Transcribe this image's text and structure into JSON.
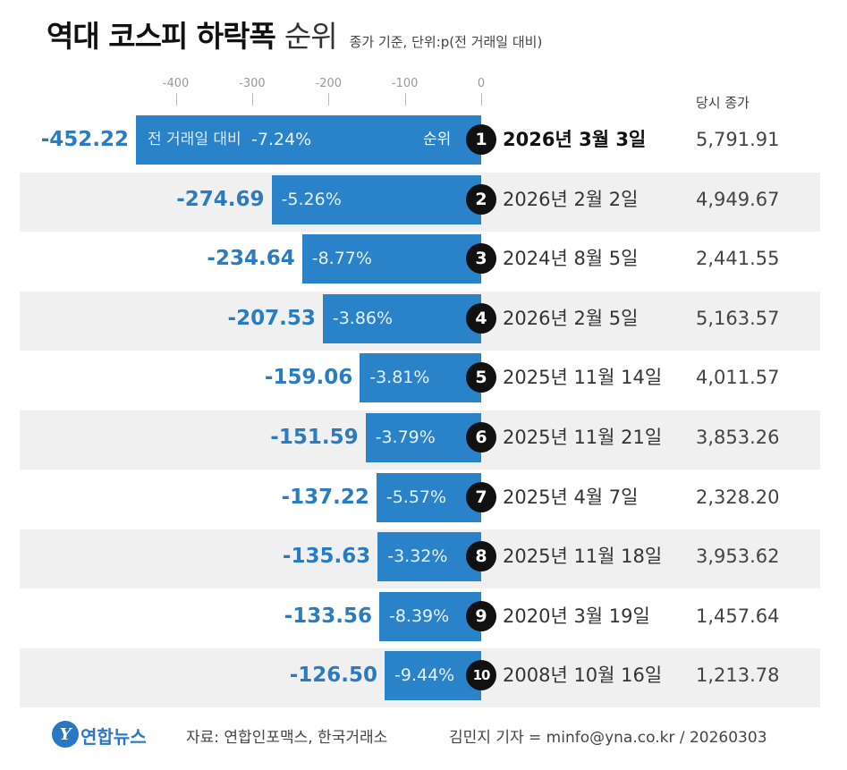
{
  "header": {
    "title_bold": "역대 코스피 하락폭",
    "title_light": "순위",
    "note": "종가 기준, 단위:p(전 거래일 대비)"
  },
  "chart_data": {
    "type": "bar",
    "orientation": "horizontal",
    "title": "역대 코스피 하락폭 순위",
    "xlim": [
      -452.22,
      0
    ],
    "ticks": [
      "-400",
      "-300",
      "-200",
      "-100",
      "0"
    ],
    "tick_values": [
      -400,
      -300,
      -200,
      -100,
      0
    ],
    "first_row_prefix": "전 거래일 대비",
    "rank_label": "순위",
    "close_header": "당시 종가",
    "rows": [
      {
        "rank": "1",
        "value": -452.22,
        "value_label": "-452.22",
        "pct": "-7.24%",
        "date": "2026년 3월 3일",
        "close": "5,791.91"
      },
      {
        "rank": "2",
        "value": -274.69,
        "value_label": "-274.69",
        "pct": "-5.26%",
        "date": "2026년 2월 2일",
        "close": "4,949.67"
      },
      {
        "rank": "3",
        "value": -234.64,
        "value_label": "-234.64",
        "pct": "-8.77%",
        "date": "2024년 8월 5일",
        "close": "2,441.55"
      },
      {
        "rank": "4",
        "value": -207.53,
        "value_label": "-207.53",
        "pct": "-3.86%",
        "date": "2026년 2월 5일",
        "close": "5,163.57"
      },
      {
        "rank": "5",
        "value": -159.06,
        "value_label": "-159.06",
        "pct": "-3.81%",
        "date": "2025년 11월 14일",
        "close": "4,011.57"
      },
      {
        "rank": "6",
        "value": -151.59,
        "value_label": "-151.59",
        "pct": "-3.79%",
        "date": "2025년 11월 21일",
        "close": "3,853.26"
      },
      {
        "rank": "7",
        "value": -137.22,
        "value_label": "-137.22",
        "pct": "-5.57%",
        "date": "2025년 4월 7일",
        "close": "2,328.20"
      },
      {
        "rank": "8",
        "value": -135.63,
        "value_label": "-135.63",
        "pct": "-3.32%",
        "date": "2025년 11월 18일",
        "close": "3,953.62"
      },
      {
        "rank": "9",
        "value": -133.56,
        "value_label": "-133.56",
        "pct": "-8.39%",
        "date": "2020년 3월 19일",
        "close": "1,457.64"
      },
      {
        "rank": "10",
        "value": -126.5,
        "value_label": "-126.50",
        "pct": "-9.44%",
        "date": "2008년 10월 16일",
        "close": "1,213.78"
      }
    ]
  },
  "footer": {
    "logo_mark": "Y",
    "logo_text": "연합뉴스",
    "source": "자료: 연합인포맥스, 한국거래소",
    "credit": "김민지 기자 = minfo@yna.co.kr / 20260303"
  },
  "colors": {
    "bar": "#2a82c8",
    "value_text": "#2a7cc0",
    "badge": "#111111",
    "row_bg": "#f0f0f0"
  }
}
